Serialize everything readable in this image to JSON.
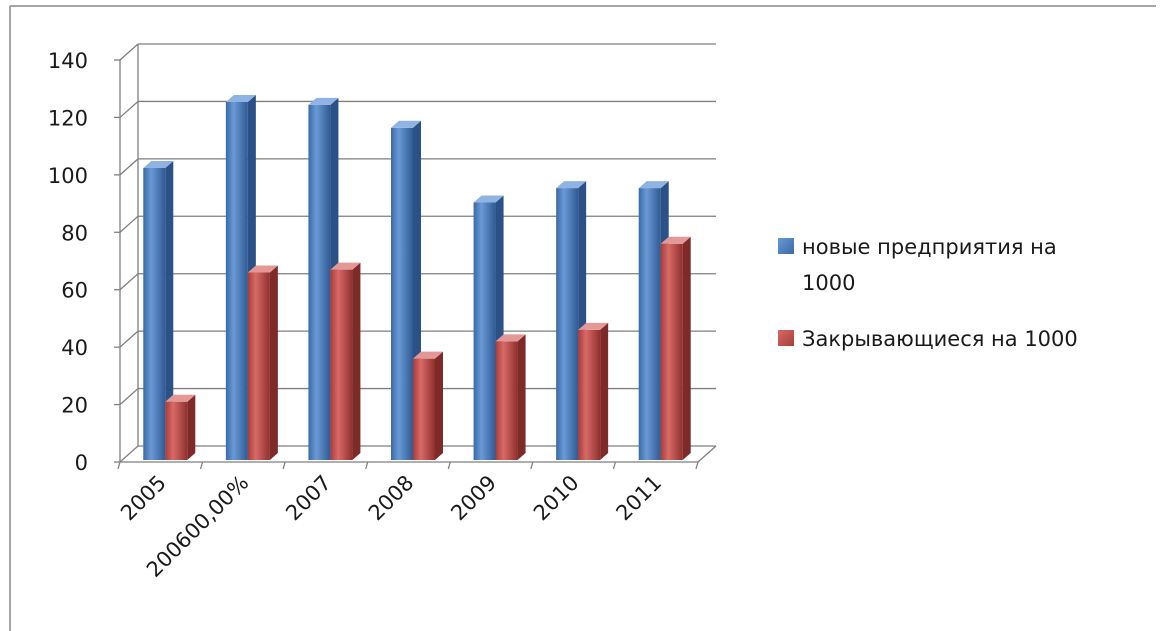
{
  "chart_data": {
    "type": "bar",
    "categories": [
      "2005",
      "200600,00%",
      "2007",
      "2008",
      "2009",
      "2010",
      "2011"
    ],
    "series": [
      {
        "name": "новые предприятия  на 1000",
        "color": "#4a7ebb",
        "values": [
          101,
          124,
          123,
          115,
          89,
          94,
          94
        ]
      },
      {
        "name": "Закрывающиеся на 1000",
        "color": "#be4b48",
        "values": [
          21,
          66,
          67,
          36,
          42,
          46,
          76
        ]
      }
    ],
    "yticks": [
      0,
      20,
      40,
      60,
      80,
      100,
      120,
      140
    ],
    "ylim": [
      0,
      140
    ],
    "grid": true,
    "legend_position": "right",
    "legend_lines": [
      [
        "новые предприятия  на",
        "1000"
      ],
      [
        "Закрывающиеся на 1000"
      ]
    ],
    "style": "3d-clustered-column"
  }
}
